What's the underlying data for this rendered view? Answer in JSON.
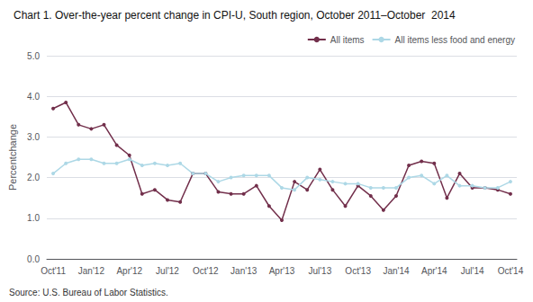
{
  "chart_data": {
    "type": "line",
    "title": "Chart 1. Over-the-year percent change in CPI-U, South region, October 2011–October  2014",
    "ylabel": "Percentchange",
    "source": "Source: U.S. Bureau of Labor Statistics.",
    "categories": [
      "Oct'11",
      null,
      null,
      "Jan'12",
      null,
      null,
      "Apr'12",
      null,
      null,
      "Jul'12",
      null,
      null,
      "Oct'12",
      null,
      null,
      "Jan'13",
      null,
      null,
      "Apr'13",
      null,
      null,
      "Jul'13",
      null,
      null,
      "Oct'13",
      null,
      null,
      "Jan'14",
      null,
      null,
      "Apr'14",
      null,
      null,
      "Jul'14",
      null,
      null,
      "Oct'14"
    ],
    "series": [
      {
        "name": "All items",
        "color": "#722F4B",
        "marker": "circle",
        "values": [
          3.7,
          3.85,
          3.3,
          3.2,
          3.3,
          2.8,
          2.55,
          1.6,
          1.7,
          1.45,
          1.4,
          2.1,
          2.1,
          1.65,
          1.6,
          1.6,
          1.8,
          1.3,
          0.95,
          1.9,
          1.7,
          2.2,
          1.7,
          1.3,
          1.8,
          1.55,
          1.2,
          1.55,
          2.3,
          2.4,
          2.35,
          1.5,
          2.1,
          1.75,
          1.75,
          1.7,
          1.6
        ]
      },
      {
        "name": "All items less food and energy",
        "color": "#ADD8E6",
        "marker": "circle",
        "values": [
          2.1,
          2.35,
          2.45,
          2.45,
          2.35,
          2.35,
          2.45,
          2.3,
          2.35,
          2.3,
          2.35,
          2.1,
          2.1,
          1.9,
          2.0,
          2.05,
          2.05,
          2.05,
          1.75,
          1.7,
          2.0,
          1.95,
          1.9,
          1.85,
          1.85,
          1.75,
          1.75,
          1.75,
          2.0,
          2.05,
          1.85,
          2.05,
          1.8,
          1.8,
          1.75,
          1.75,
          1.9
        ]
      }
    ],
    "ylim": [
      0.0,
      5.0
    ],
    "yticks": [
      {
        "value": 0,
        "label": "0.0"
      },
      {
        "value": 1,
        "label": "1.0"
      },
      {
        "value": 2,
        "label": "2.0"
      },
      {
        "value": 3,
        "label": "3.0"
      },
      {
        "value": 4,
        "label": "4.0"
      },
      {
        "value": 5,
        "label": "5.0"
      }
    ],
    "grid": true,
    "legend": "upper right"
  }
}
